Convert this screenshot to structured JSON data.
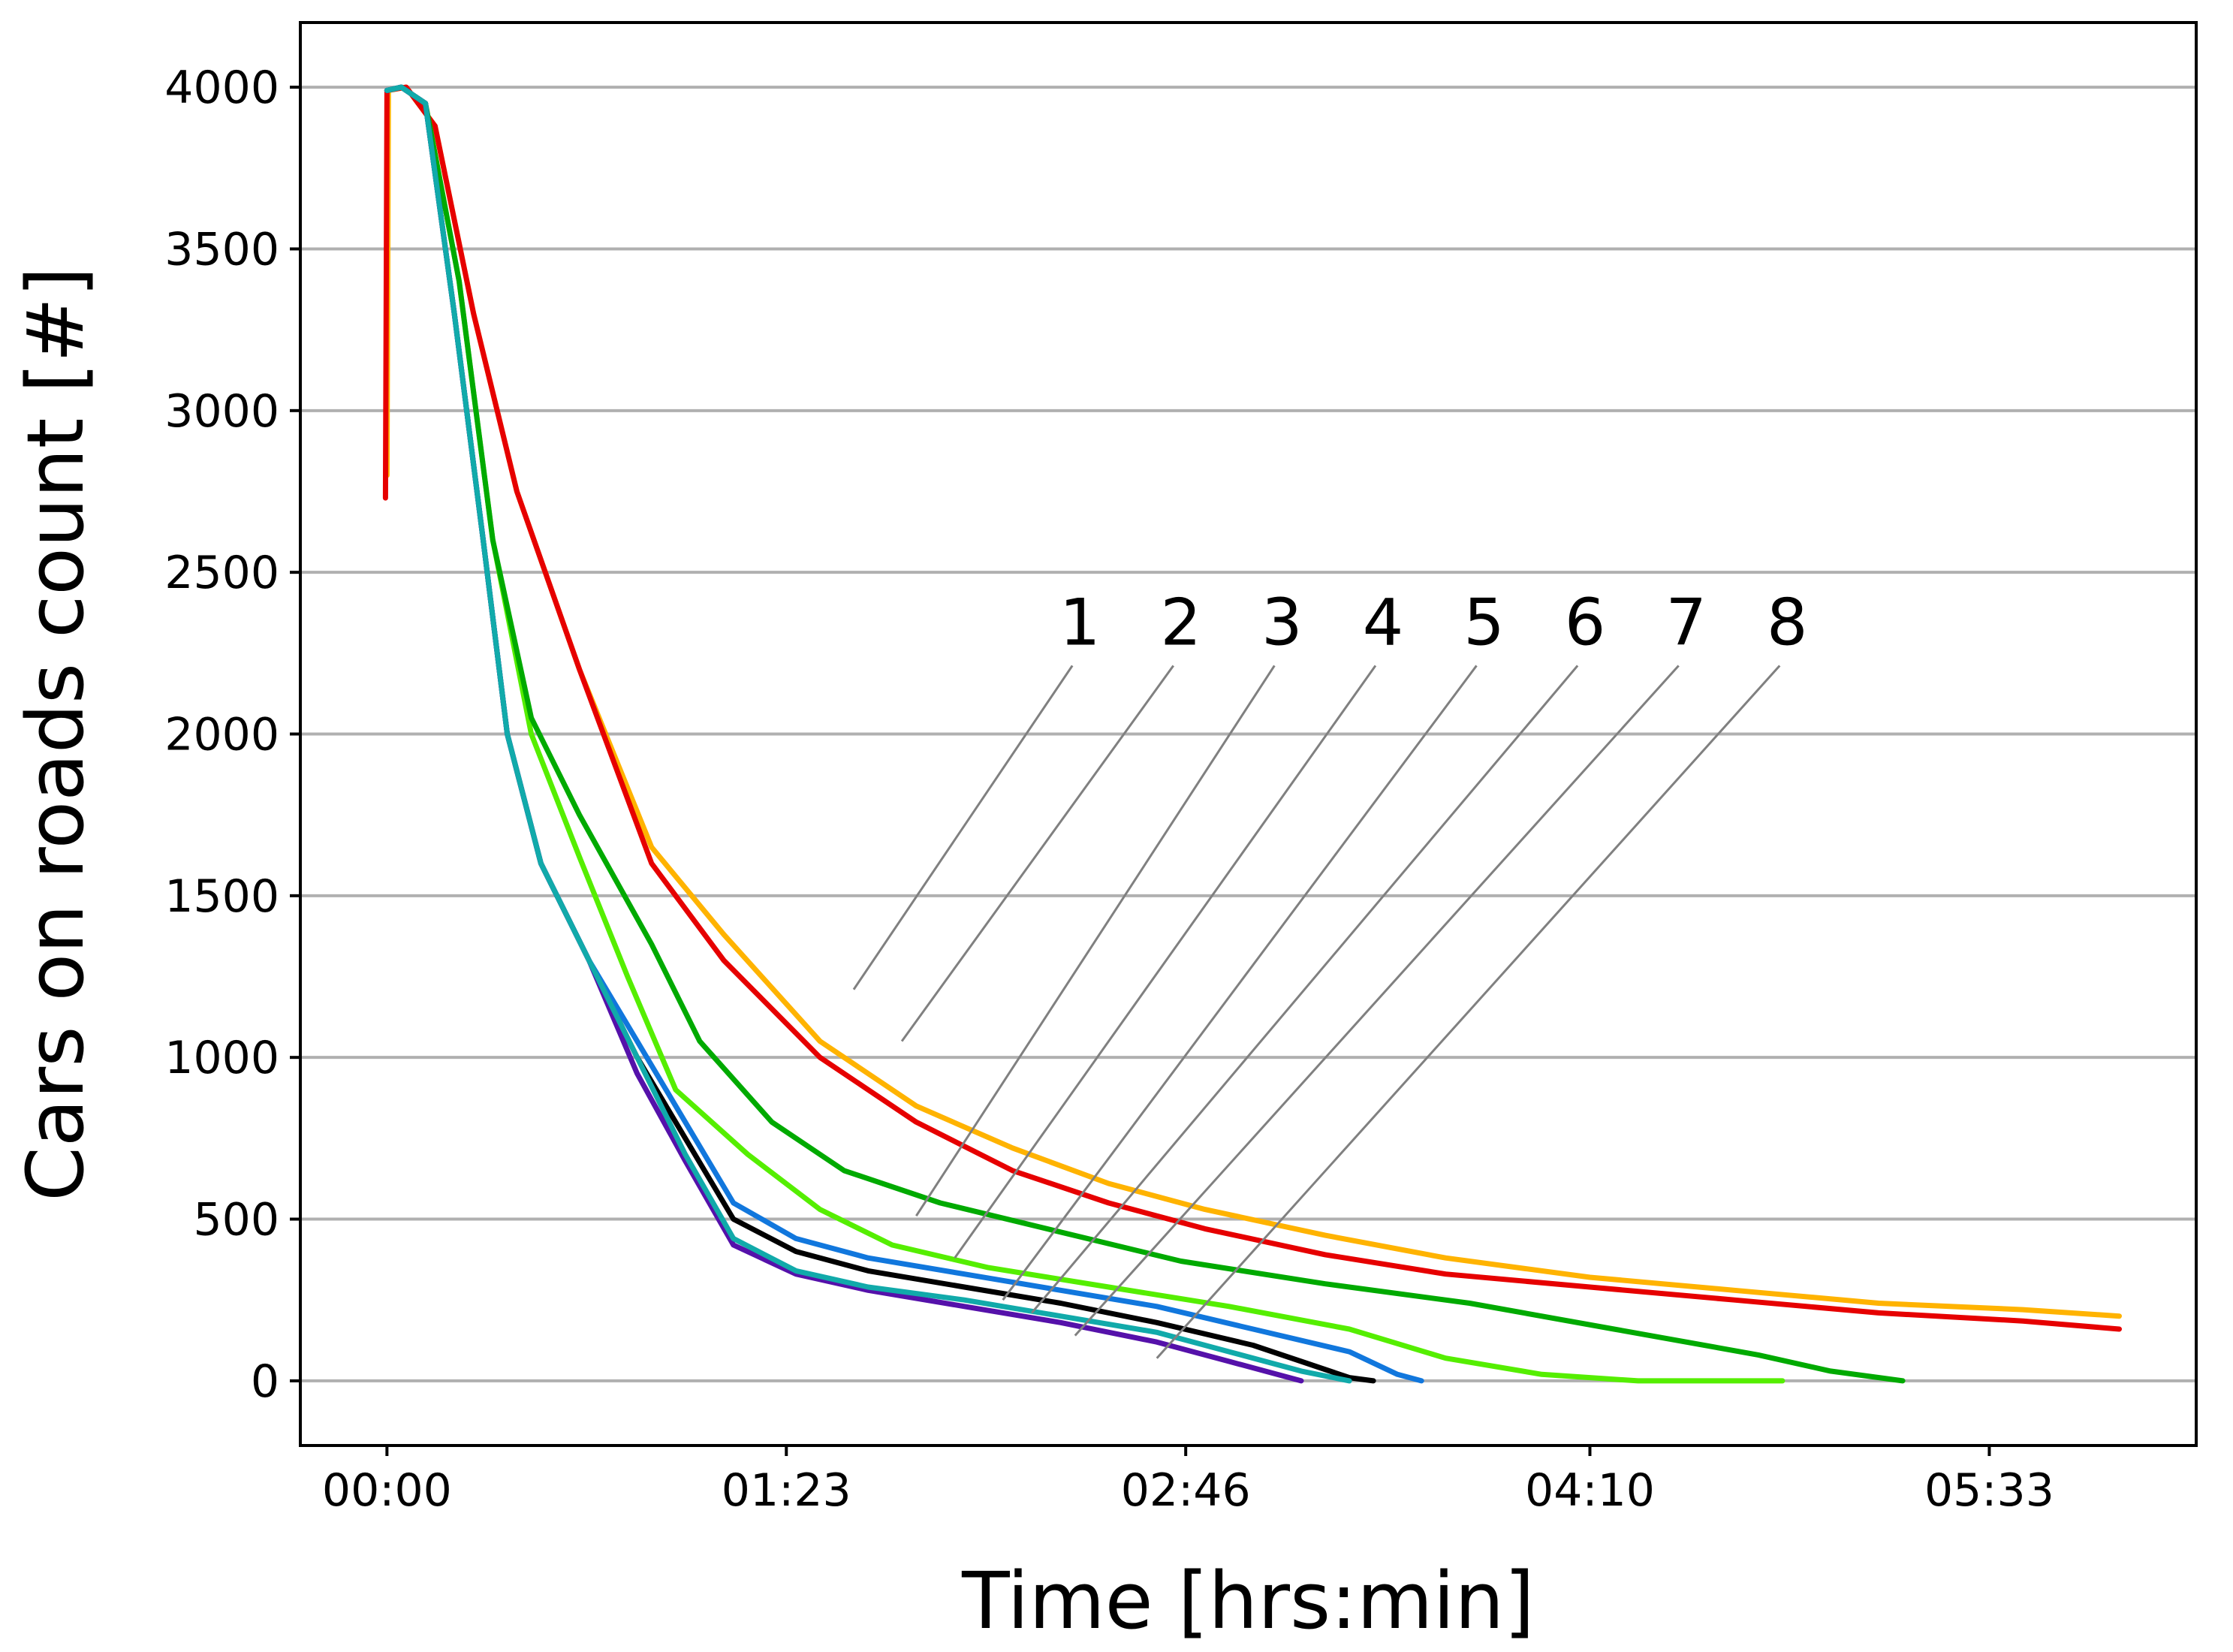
{
  "chart_data": {
    "type": "line",
    "xlabel": "Time [hrs:min]",
    "ylabel": "Cars on roads count [#]",
    "x_unit": "minutes",
    "xlim": [
      -18,
      376
    ],
    "ylim": [
      -200,
      4200
    ],
    "x_ticks": [
      {
        "value": 0,
        "label": "00:00"
      },
      {
        "value": 83,
        "label": "01:23"
      },
      {
        "value": 166,
        "label": "02:46"
      },
      {
        "value": 250,
        "label": "04:10"
      },
      {
        "value": 333,
        "label": "05:33"
      }
    ],
    "y_ticks": [
      0,
      500,
      1000,
      1500,
      2000,
      2500,
      3000,
      3500,
      4000
    ],
    "grid": "horizontal",
    "series": [
      {
        "name": "1",
        "color": "#ffb300",
        "points": [
          [
            0,
            2800
          ],
          [
            0.3,
            3990
          ],
          [
            4,
            4000
          ],
          [
            10,
            3880
          ],
          [
            18,
            3300
          ],
          [
            27,
            2750
          ],
          [
            40,
            2200
          ],
          [
            55,
            1650
          ],
          [
            70,
            1380
          ],
          [
            90,
            1050
          ],
          [
            110,
            850
          ],
          [
            130,
            720
          ],
          [
            150,
            610
          ],
          [
            170,
            530
          ],
          [
            195,
            450
          ],
          [
            220,
            380
          ],
          [
            250,
            320
          ],
          [
            280,
            280
          ],
          [
            310,
            240
          ],
          [
            340,
            220
          ],
          [
            360,
            200
          ]
        ]
      },
      {
        "name": "2",
        "color": "#e60000",
        "points": [
          [
            -0.3,
            2730
          ],
          [
            0,
            3990
          ],
          [
            4,
            4000
          ],
          [
            10,
            3880
          ],
          [
            18,
            3300
          ],
          [
            27,
            2750
          ],
          [
            40,
            2200
          ],
          [
            55,
            1600
          ],
          [
            70,
            1300
          ],
          [
            90,
            1000
          ],
          [
            110,
            800
          ],
          [
            130,
            650
          ],
          [
            150,
            550
          ],
          [
            170,
            470
          ],
          [
            195,
            390
          ],
          [
            220,
            330
          ],
          [
            250,
            290
          ],
          [
            280,
            250
          ],
          [
            310,
            210
          ],
          [
            340,
            185
          ],
          [
            360,
            160
          ]
        ]
      },
      {
        "name": "3",
        "color": "#55ee00",
        "points": [
          [
            0,
            3990
          ],
          [
            3,
            4000
          ],
          [
            8,
            3950
          ],
          [
            15,
            3400
          ],
          [
            22,
            2600
          ],
          [
            30,
            2000
          ],
          [
            40,
            1620
          ],
          [
            50,
            1250
          ],
          [
            60,
            900
          ],
          [
            75,
            700
          ],
          [
            90,
            530
          ],
          [
            105,
            420
          ],
          [
            125,
            350
          ],
          [
            150,
            290
          ],
          [
            175,
            230
          ],
          [
            200,
            160
          ],
          [
            220,
            70
          ],
          [
            240,
            20
          ],
          [
            260,
            0
          ],
          [
            290,
            0
          ]
        ]
      },
      {
        "name": "4",
        "color": "#00aa00",
        "points": [
          [
            0,
            3990
          ],
          [
            3,
            4000
          ],
          [
            8,
            3950
          ],
          [
            15,
            3400
          ],
          [
            22,
            2600
          ],
          [
            30,
            2050
          ],
          [
            40,
            1750
          ],
          [
            55,
            1350
          ],
          [
            65,
            1050
          ],
          [
            80,
            800
          ],
          [
            95,
            650
          ],
          [
            115,
            550
          ],
          [
            140,
            460
          ],
          [
            165,
            370
          ],
          [
            195,
            300
          ],
          [
            225,
            240
          ],
          [
            255,
            160
          ],
          [
            285,
            80
          ],
          [
            300,
            30
          ],
          [
            315,
            0
          ]
        ]
      },
      {
        "name": "5",
        "color": "#000000",
        "points": [
          [
            0,
            3990
          ],
          [
            3,
            4000
          ],
          [
            8,
            3950
          ],
          [
            14,
            3300
          ],
          [
            20,
            2600
          ],
          [
            25,
            2000
          ],
          [
            32,
            1600
          ],
          [
            42,
            1300
          ],
          [
            52,
            1000
          ],
          [
            62,
            750
          ],
          [
            72,
            500
          ],
          [
            85,
            400
          ],
          [
            100,
            340
          ],
          [
            120,
            290
          ],
          [
            140,
            240
          ],
          [
            160,
            180
          ],
          [
            180,
            110
          ],
          [
            190,
            60
          ],
          [
            200,
            10
          ],
          [
            205,
            0
          ]
        ]
      },
      {
        "name": "6",
        "color": "#1177dd",
        "points": [
          [
            0,
            3990
          ],
          [
            3,
            4000
          ],
          [
            8,
            3950
          ],
          [
            14,
            3300
          ],
          [
            20,
            2600
          ],
          [
            25,
            2000
          ],
          [
            32,
            1600
          ],
          [
            42,
            1300
          ],
          [
            52,
            1050
          ],
          [
            62,
            800
          ],
          [
            72,
            550
          ],
          [
            85,
            440
          ],
          [
            100,
            380
          ],
          [
            120,
            330
          ],
          [
            140,
            280
          ],
          [
            160,
            230
          ],
          [
            180,
            160
          ],
          [
            200,
            90
          ],
          [
            210,
            20
          ],
          [
            215,
            0
          ]
        ]
      },
      {
        "name": "7",
        "color": "#5511aa",
        "points": [
          [
            0,
            3990
          ],
          [
            3,
            4000
          ],
          [
            8,
            3950
          ],
          [
            14,
            3300
          ],
          [
            20,
            2600
          ],
          [
            25,
            2000
          ],
          [
            32,
            1600
          ],
          [
            42,
            1300
          ],
          [
            52,
            950
          ],
          [
            62,
            680
          ],
          [
            72,
            420
          ],
          [
            85,
            330
          ],
          [
            100,
            280
          ],
          [
            120,
            230
          ],
          [
            140,
            180
          ],
          [
            160,
            120
          ],
          [
            175,
            60
          ],
          [
            185,
            20
          ],
          [
            190,
            0
          ]
        ]
      },
      {
        "name": "8",
        "color": "#11aaaa",
        "points": [
          [
            0,
            3990
          ],
          [
            3,
            4000
          ],
          [
            8,
            3950
          ],
          [
            14,
            3300
          ],
          [
            20,
            2600
          ],
          [
            25,
            2000
          ],
          [
            32,
            1600
          ],
          [
            42,
            1300
          ],
          [
            52,
            1000
          ],
          [
            62,
            700
          ],
          [
            72,
            440
          ],
          [
            85,
            340
          ],
          [
            100,
            290
          ],
          [
            120,
            250
          ],
          [
            140,
            200
          ],
          [
            160,
            150
          ],
          [
            175,
            90
          ],
          [
            190,
            30
          ],
          [
            200,
            0
          ]
        ]
      }
    ],
    "annotations": [
      {
        "label": "1",
        "text_x": 144,
        "text_y": 2230,
        "point_x": 97,
        "point_y": 1210
      },
      {
        "label": "2",
        "text_x": 165,
        "text_y": 2230,
        "point_x": 107,
        "point_y": 1050
      },
      {
        "label": "3",
        "text_x": 186,
        "text_y": 2230,
        "point_x": 110,
        "point_y": 510
      },
      {
        "label": "4",
        "text_x": 207,
        "text_y": 2230,
        "point_x": 118,
        "point_y": 380
      },
      {
        "label": "5",
        "text_x": 228,
        "text_y": 2230,
        "point_x": 128,
        "point_y": 250
      },
      {
        "label": "6",
        "text_x": 249,
        "text_y": 2230,
        "point_x": 134,
        "point_y": 210
      },
      {
        "label": "7",
        "text_x": 270,
        "text_y": 2230,
        "point_x": 143,
        "point_y": 140
      },
      {
        "label": "8",
        "text_x": 291,
        "text_y": 2230,
        "point_x": 160,
        "point_y": 70
      }
    ]
  }
}
